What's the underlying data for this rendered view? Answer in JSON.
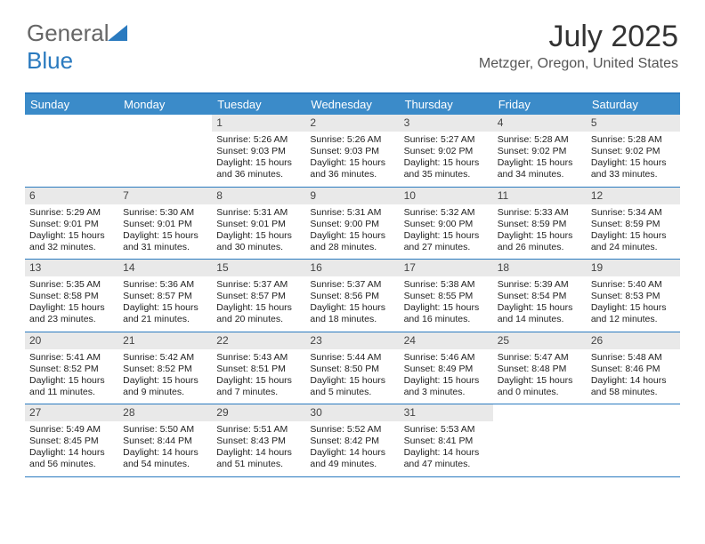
{
  "brand": {
    "part1": "General",
    "part2": "Blue"
  },
  "title": "July 2025",
  "location": "Metzger, Oregon, United States",
  "header_bg": "#3b8bc9",
  "border_color": "#2a7abf",
  "daynum_bg": "#e9e9e9",
  "day_headers": [
    "Sunday",
    "Monday",
    "Tuesday",
    "Wednesday",
    "Thursday",
    "Friday",
    "Saturday"
  ],
  "weeks": [
    [
      {
        "day": "",
        "sunrise": "",
        "sunset": "",
        "daylight": ""
      },
      {
        "day": "",
        "sunrise": "",
        "sunset": "",
        "daylight": ""
      },
      {
        "day": "1",
        "sunrise": "Sunrise: 5:26 AM",
        "sunset": "Sunset: 9:03 PM",
        "daylight": "Daylight: 15 hours and 36 minutes."
      },
      {
        "day": "2",
        "sunrise": "Sunrise: 5:26 AM",
        "sunset": "Sunset: 9:03 PM",
        "daylight": "Daylight: 15 hours and 36 minutes."
      },
      {
        "day": "3",
        "sunrise": "Sunrise: 5:27 AM",
        "sunset": "Sunset: 9:02 PM",
        "daylight": "Daylight: 15 hours and 35 minutes."
      },
      {
        "day": "4",
        "sunrise": "Sunrise: 5:28 AM",
        "sunset": "Sunset: 9:02 PM",
        "daylight": "Daylight: 15 hours and 34 minutes."
      },
      {
        "day": "5",
        "sunrise": "Sunrise: 5:28 AM",
        "sunset": "Sunset: 9:02 PM",
        "daylight": "Daylight: 15 hours and 33 minutes."
      }
    ],
    [
      {
        "day": "6",
        "sunrise": "Sunrise: 5:29 AM",
        "sunset": "Sunset: 9:01 PM",
        "daylight": "Daylight: 15 hours and 32 minutes."
      },
      {
        "day": "7",
        "sunrise": "Sunrise: 5:30 AM",
        "sunset": "Sunset: 9:01 PM",
        "daylight": "Daylight: 15 hours and 31 minutes."
      },
      {
        "day": "8",
        "sunrise": "Sunrise: 5:31 AM",
        "sunset": "Sunset: 9:01 PM",
        "daylight": "Daylight: 15 hours and 30 minutes."
      },
      {
        "day": "9",
        "sunrise": "Sunrise: 5:31 AM",
        "sunset": "Sunset: 9:00 PM",
        "daylight": "Daylight: 15 hours and 28 minutes."
      },
      {
        "day": "10",
        "sunrise": "Sunrise: 5:32 AM",
        "sunset": "Sunset: 9:00 PM",
        "daylight": "Daylight: 15 hours and 27 minutes."
      },
      {
        "day": "11",
        "sunrise": "Sunrise: 5:33 AM",
        "sunset": "Sunset: 8:59 PM",
        "daylight": "Daylight: 15 hours and 26 minutes."
      },
      {
        "day": "12",
        "sunrise": "Sunrise: 5:34 AM",
        "sunset": "Sunset: 8:59 PM",
        "daylight": "Daylight: 15 hours and 24 minutes."
      }
    ],
    [
      {
        "day": "13",
        "sunrise": "Sunrise: 5:35 AM",
        "sunset": "Sunset: 8:58 PM",
        "daylight": "Daylight: 15 hours and 23 minutes."
      },
      {
        "day": "14",
        "sunrise": "Sunrise: 5:36 AM",
        "sunset": "Sunset: 8:57 PM",
        "daylight": "Daylight: 15 hours and 21 minutes."
      },
      {
        "day": "15",
        "sunrise": "Sunrise: 5:37 AM",
        "sunset": "Sunset: 8:57 PM",
        "daylight": "Daylight: 15 hours and 20 minutes."
      },
      {
        "day": "16",
        "sunrise": "Sunrise: 5:37 AM",
        "sunset": "Sunset: 8:56 PM",
        "daylight": "Daylight: 15 hours and 18 minutes."
      },
      {
        "day": "17",
        "sunrise": "Sunrise: 5:38 AM",
        "sunset": "Sunset: 8:55 PM",
        "daylight": "Daylight: 15 hours and 16 minutes."
      },
      {
        "day": "18",
        "sunrise": "Sunrise: 5:39 AM",
        "sunset": "Sunset: 8:54 PM",
        "daylight": "Daylight: 15 hours and 14 minutes."
      },
      {
        "day": "19",
        "sunrise": "Sunrise: 5:40 AM",
        "sunset": "Sunset: 8:53 PM",
        "daylight": "Daylight: 15 hours and 12 minutes."
      }
    ],
    [
      {
        "day": "20",
        "sunrise": "Sunrise: 5:41 AM",
        "sunset": "Sunset: 8:52 PM",
        "daylight": "Daylight: 15 hours and 11 minutes."
      },
      {
        "day": "21",
        "sunrise": "Sunrise: 5:42 AM",
        "sunset": "Sunset: 8:52 PM",
        "daylight": "Daylight: 15 hours and 9 minutes."
      },
      {
        "day": "22",
        "sunrise": "Sunrise: 5:43 AM",
        "sunset": "Sunset: 8:51 PM",
        "daylight": "Daylight: 15 hours and 7 minutes."
      },
      {
        "day": "23",
        "sunrise": "Sunrise: 5:44 AM",
        "sunset": "Sunset: 8:50 PM",
        "daylight": "Daylight: 15 hours and 5 minutes."
      },
      {
        "day": "24",
        "sunrise": "Sunrise: 5:46 AM",
        "sunset": "Sunset: 8:49 PM",
        "daylight": "Daylight: 15 hours and 3 minutes."
      },
      {
        "day": "25",
        "sunrise": "Sunrise: 5:47 AM",
        "sunset": "Sunset: 8:48 PM",
        "daylight": "Daylight: 15 hours and 0 minutes."
      },
      {
        "day": "26",
        "sunrise": "Sunrise: 5:48 AM",
        "sunset": "Sunset: 8:46 PM",
        "daylight": "Daylight: 14 hours and 58 minutes."
      }
    ],
    [
      {
        "day": "27",
        "sunrise": "Sunrise: 5:49 AM",
        "sunset": "Sunset: 8:45 PM",
        "daylight": "Daylight: 14 hours and 56 minutes."
      },
      {
        "day": "28",
        "sunrise": "Sunrise: 5:50 AM",
        "sunset": "Sunset: 8:44 PM",
        "daylight": "Daylight: 14 hours and 54 minutes."
      },
      {
        "day": "29",
        "sunrise": "Sunrise: 5:51 AM",
        "sunset": "Sunset: 8:43 PM",
        "daylight": "Daylight: 14 hours and 51 minutes."
      },
      {
        "day": "30",
        "sunrise": "Sunrise: 5:52 AM",
        "sunset": "Sunset: 8:42 PM",
        "daylight": "Daylight: 14 hours and 49 minutes."
      },
      {
        "day": "31",
        "sunrise": "Sunrise: 5:53 AM",
        "sunset": "Sunset: 8:41 PM",
        "daylight": "Daylight: 14 hours and 47 minutes."
      },
      {
        "day": "",
        "sunrise": "",
        "sunset": "",
        "daylight": ""
      },
      {
        "day": "",
        "sunrise": "",
        "sunset": "",
        "daylight": ""
      }
    ]
  ]
}
